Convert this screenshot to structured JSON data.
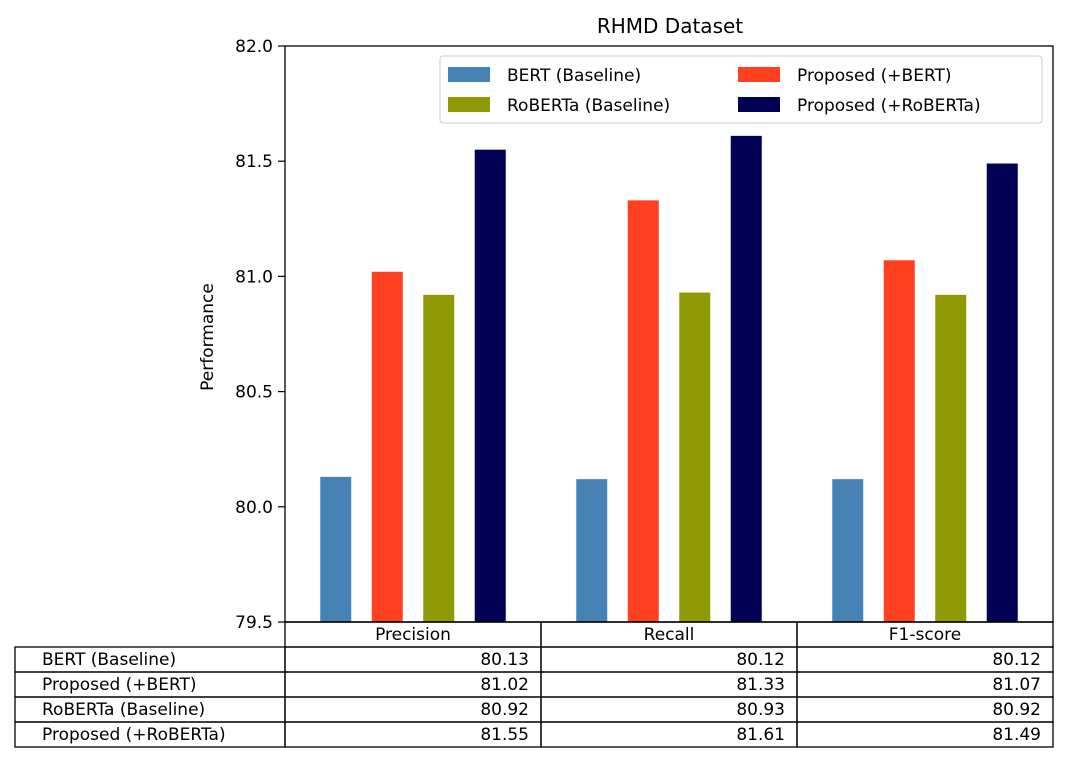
{
  "chart_data": {
    "type": "bar",
    "title": "RHMD Dataset",
    "xlabel": "",
    "ylabel": "Performance",
    "ylim": [
      79.5,
      82.0
    ],
    "yticks": [
      "79.5",
      "80.0",
      "80.5",
      "81.0",
      "81.5",
      "82.0"
    ],
    "categories": [
      "Precision",
      "Recall",
      "F1-score"
    ],
    "series": [
      {
        "name": "BERT (Baseline)",
        "color": "#4682b4",
        "values": [
          80.13,
          80.12,
          80.12
        ]
      },
      {
        "name": "Proposed (+BERT)",
        "color": "#ff4020",
        "values": [
          81.02,
          81.33,
          81.07
        ]
      },
      {
        "name": "RoBERTa (Baseline)",
        "color": "#8f9a04",
        "values": [
          80.92,
          80.93,
          80.92
        ]
      },
      {
        "name": "Proposed (+RoBERTa)",
        "color": "#000055",
        "values": [
          81.55,
          81.61,
          81.49
        ]
      }
    ],
    "table": {
      "columns": [
        "Precision",
        "Recall",
        "F1-score"
      ],
      "rows": [
        {
          "label": "BERT (Baseline)",
          "cells": [
            "80.13",
            "80.12",
            "80.12"
          ]
        },
        {
          "label": "Proposed (+BERT)",
          "cells": [
            "81.02",
            "81.33",
            "81.07"
          ]
        },
        {
          "label": "RoBERTa (Baseline)",
          "cells": [
            "80.92",
            "80.93",
            "80.92"
          ]
        },
        {
          "label": "Proposed (+RoBERTa)",
          "cells": [
            "81.55",
            "81.61",
            "81.49"
          ]
        }
      ]
    },
    "legend": {
      "placement": "top-right",
      "columns": 2
    }
  }
}
